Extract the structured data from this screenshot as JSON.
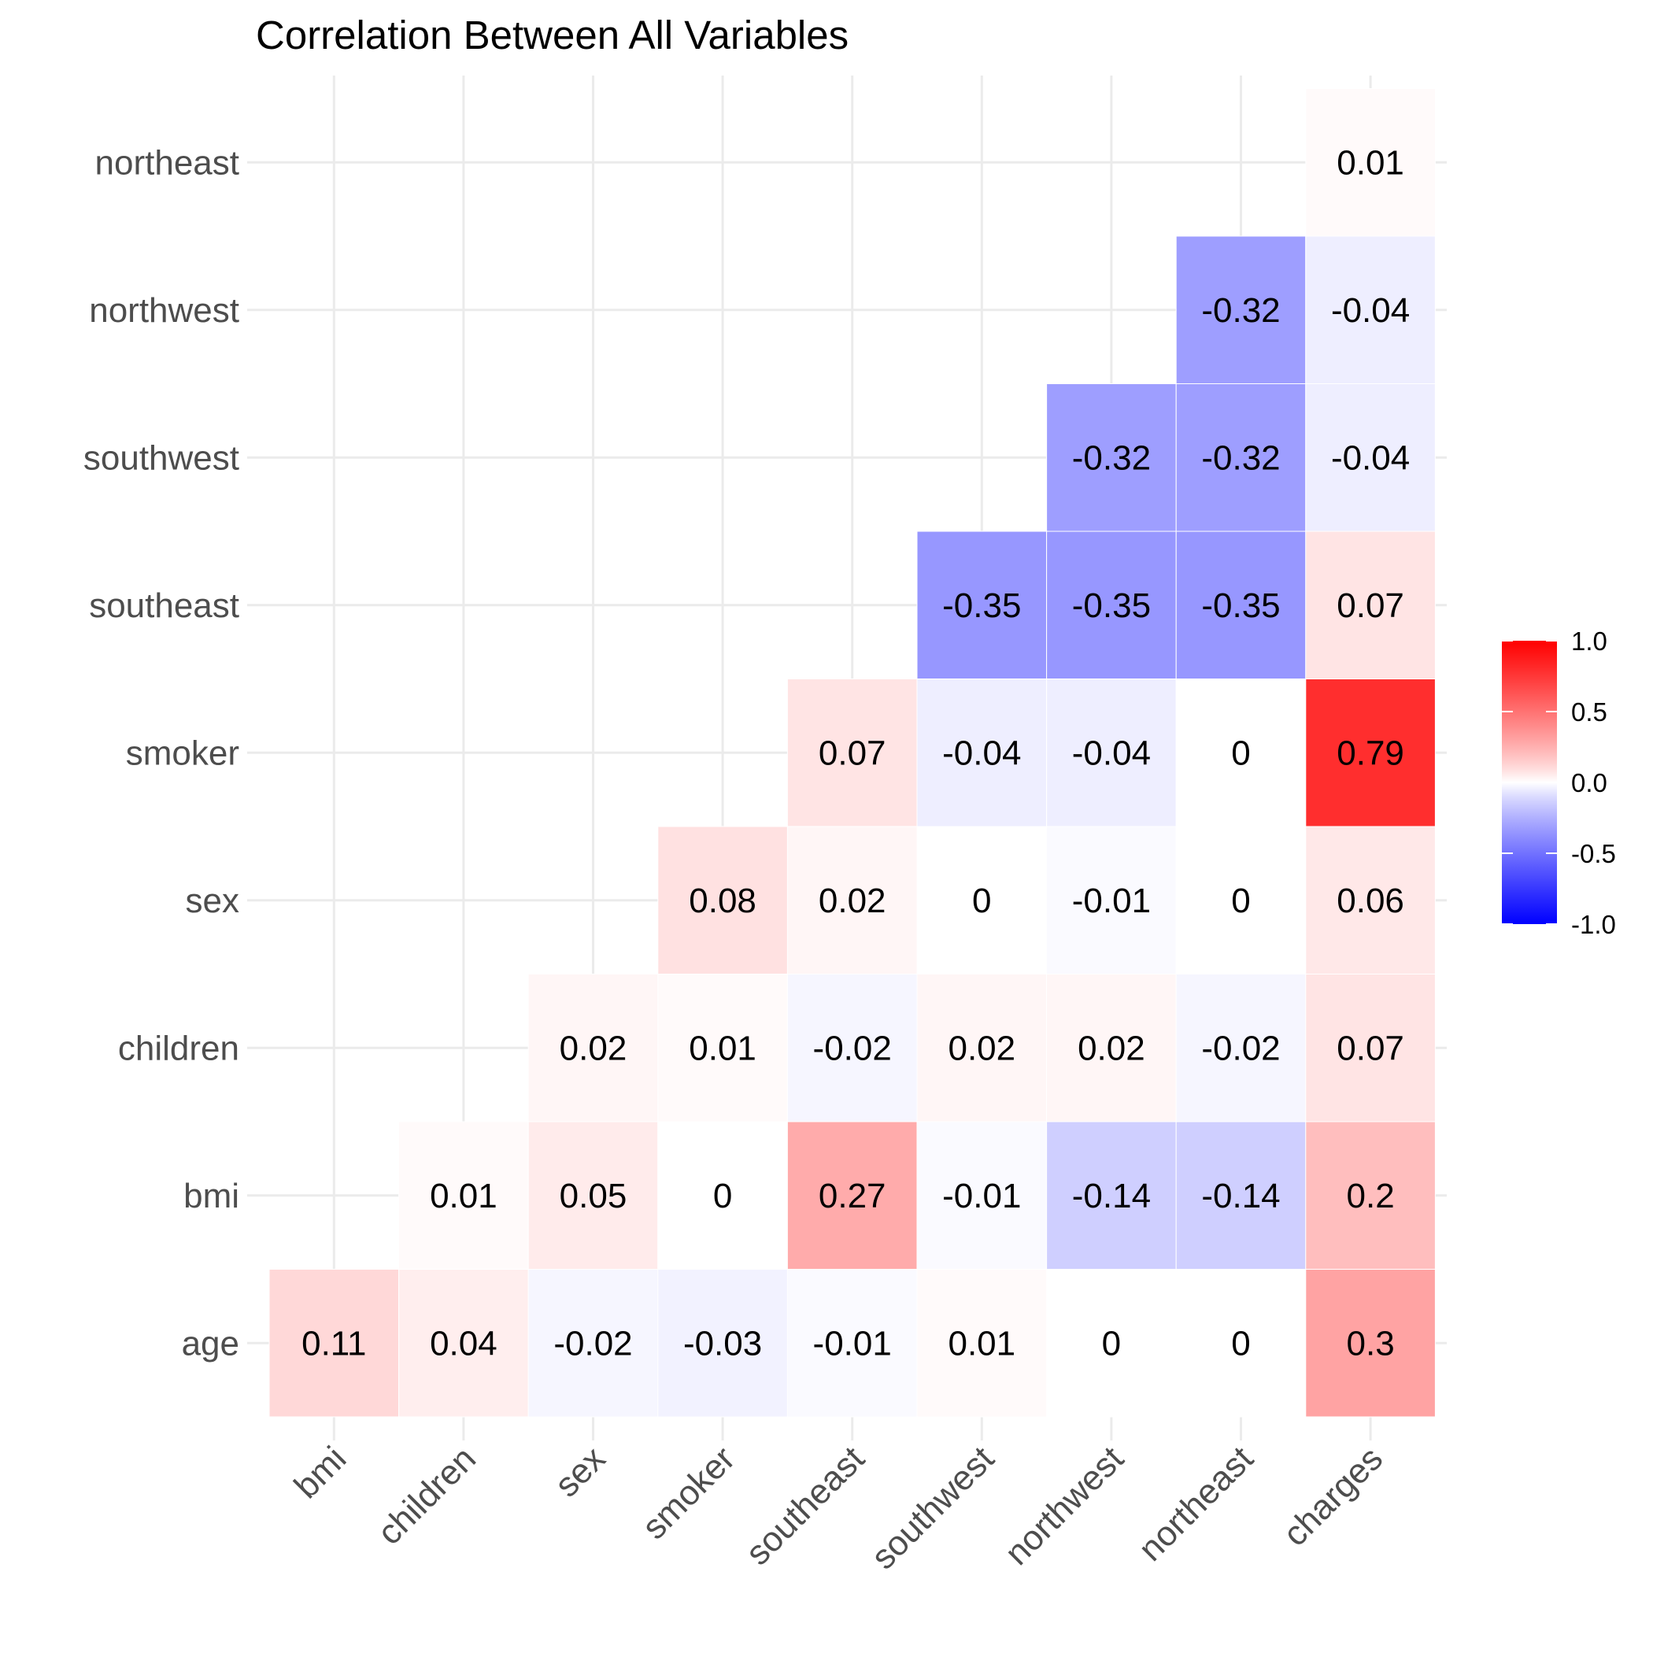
{
  "chart_data": {
    "type": "heatmap",
    "title": "Correlation Between All Variables",
    "xlabel": "",
    "ylabel": "",
    "x_categories": [
      "bmi",
      "children",
      "sex",
      "smoker",
      "southeast",
      "southwest",
      "northwest",
      "northeast",
      "charges"
    ],
    "y_categories": [
      "age",
      "bmi",
      "children",
      "sex",
      "smoker",
      "southeast",
      "southwest",
      "northwest",
      "northeast"
    ],
    "cells": [
      {
        "x": "bmi",
        "y": "age",
        "value": 0.11
      },
      {
        "x": "children",
        "y": "age",
        "value": 0.04
      },
      {
        "x": "sex",
        "y": "age",
        "value": -0.02
      },
      {
        "x": "smoker",
        "y": "age",
        "value": -0.03
      },
      {
        "x": "southeast",
        "y": "age",
        "value": -0.01
      },
      {
        "x": "southwest",
        "y": "age",
        "value": 0.01
      },
      {
        "x": "northwest",
        "y": "age",
        "value": 0
      },
      {
        "x": "northeast",
        "y": "age",
        "value": 0
      },
      {
        "x": "charges",
        "y": "age",
        "value": 0.3
      },
      {
        "x": "children",
        "y": "bmi",
        "value": 0.01
      },
      {
        "x": "sex",
        "y": "bmi",
        "value": 0.05
      },
      {
        "x": "smoker",
        "y": "bmi",
        "value": 0
      },
      {
        "x": "southeast",
        "y": "bmi",
        "value": 0.27
      },
      {
        "x": "southwest",
        "y": "bmi",
        "value": -0.01
      },
      {
        "x": "northwest",
        "y": "bmi",
        "value": -0.14
      },
      {
        "x": "northeast",
        "y": "bmi",
        "value": -0.14
      },
      {
        "x": "charges",
        "y": "bmi",
        "value": 0.2
      },
      {
        "x": "sex",
        "y": "children",
        "value": 0.02
      },
      {
        "x": "smoker",
        "y": "children",
        "value": 0.01
      },
      {
        "x": "southeast",
        "y": "children",
        "value": -0.02
      },
      {
        "x": "southwest",
        "y": "children",
        "value": 0.02
      },
      {
        "x": "northwest",
        "y": "children",
        "value": 0.02
      },
      {
        "x": "northeast",
        "y": "children",
        "value": -0.02
      },
      {
        "x": "charges",
        "y": "children",
        "value": 0.07
      },
      {
        "x": "smoker",
        "y": "sex",
        "value": 0.08
      },
      {
        "x": "southeast",
        "y": "sex",
        "value": 0.02
      },
      {
        "x": "southwest",
        "y": "sex",
        "value": 0
      },
      {
        "x": "northwest",
        "y": "sex",
        "value": -0.01
      },
      {
        "x": "northeast",
        "y": "sex",
        "value": 0
      },
      {
        "x": "charges",
        "y": "sex",
        "value": 0.06
      },
      {
        "x": "southeast",
        "y": "smoker",
        "value": 0.07
      },
      {
        "x": "southwest",
        "y": "smoker",
        "value": -0.04
      },
      {
        "x": "northwest",
        "y": "smoker",
        "value": -0.04
      },
      {
        "x": "northeast",
        "y": "smoker",
        "value": 0
      },
      {
        "x": "charges",
        "y": "smoker",
        "value": 0.79
      },
      {
        "x": "southwest",
        "y": "southeast",
        "value": -0.35
      },
      {
        "x": "northwest",
        "y": "southeast",
        "value": -0.35
      },
      {
        "x": "northeast",
        "y": "southeast",
        "value": -0.35
      },
      {
        "x": "charges",
        "y": "southeast",
        "value": 0.07
      },
      {
        "x": "northwest",
        "y": "southwest",
        "value": -0.32
      },
      {
        "x": "northeast",
        "y": "southwest",
        "value": -0.32
      },
      {
        "x": "charges",
        "y": "southwest",
        "value": -0.04
      },
      {
        "x": "northeast",
        "y": "northwest",
        "value": -0.32
      },
      {
        "x": "charges",
        "y": "northwest",
        "value": -0.04
      },
      {
        "x": "charges",
        "y": "northeast",
        "value": 0.01
      }
    ],
    "color_scale": {
      "low": "#0000ff",
      "mid": "#ffffff",
      "high": "#ff0000",
      "limits": [
        -1,
        1
      ]
    },
    "legend": {
      "position": "right",
      "ticks": [
        "1.0",
        "0.5",
        "0.0",
        "-0.5",
        "-1.0"
      ]
    },
    "grid": true
  }
}
